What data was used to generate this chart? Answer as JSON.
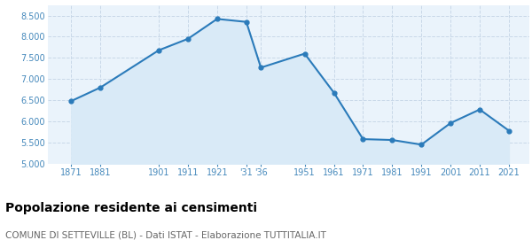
{
  "years": [
    1871,
    1881,
    1901,
    1911,
    1921,
    1931,
    1936,
    1951,
    1961,
    1971,
    1981,
    1991,
    2001,
    2011,
    2021
  ],
  "population": [
    6480,
    6800,
    7680,
    7950,
    8420,
    8350,
    7270,
    7600,
    6680,
    5580,
    5560,
    5450,
    5960,
    6280,
    5780
  ],
  "x_labels": [
    "1871",
    "1881",
    "1901",
    "1911",
    "1921",
    "'31",
    "'36",
    "1951",
    "1961",
    "1971",
    "1981",
    "1991",
    "2001",
    "2011",
    "2021"
  ],
  "ylim": [
    5000,
    8750
  ],
  "yticks": [
    5000,
    5500,
    6000,
    6500,
    7000,
    7500,
    8000,
    8500
  ],
  "line_color": "#2b7bba",
  "fill_color": "#d9eaf7",
  "marker_color": "#2b7bba",
  "background_color": "#eaf3fb",
  "grid_color": "#c8d8e8",
  "tick_color": "#4488bb",
  "title": "Popolazione residente ai censimenti",
  "subtitle": "COMUNE DI SETTEVILLE (BL) - Dati ISTAT - Elaborazione TUTTITALIA.IT",
  "title_fontsize": 10,
  "subtitle_fontsize": 7.5
}
